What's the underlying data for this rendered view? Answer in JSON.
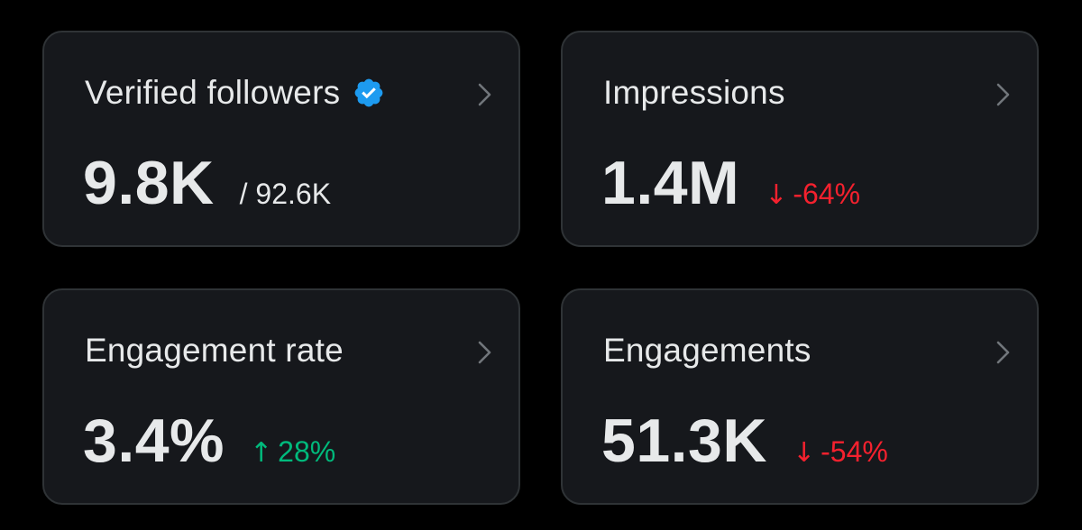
{
  "colors": {
    "background": "#000000",
    "card_background": "#16181c",
    "card_border": "#2f3336",
    "text_primary": "#e7e9ea",
    "chevron": "#71767b",
    "verified_badge": "#1d9bf0",
    "negative": "#f4212e",
    "positive": "#00ba7c"
  },
  "cards": [
    {
      "title": "Verified followers",
      "icon": "verified-badge-icon",
      "value": "9.8K",
      "secondary": "/ 92.6K"
    },
    {
      "title": "Impressions",
      "value": "1.4M",
      "change": {
        "arrow": "↓",
        "text": "-64%",
        "direction": "down"
      }
    },
    {
      "title": "Engagement rate",
      "value": "3.4%",
      "change": {
        "arrow": "↑",
        "text": "28%",
        "direction": "up"
      }
    },
    {
      "title": "Engagements",
      "value": "51.3K",
      "change": {
        "arrow": "↓",
        "text": "-54%",
        "direction": "down"
      }
    }
  ]
}
